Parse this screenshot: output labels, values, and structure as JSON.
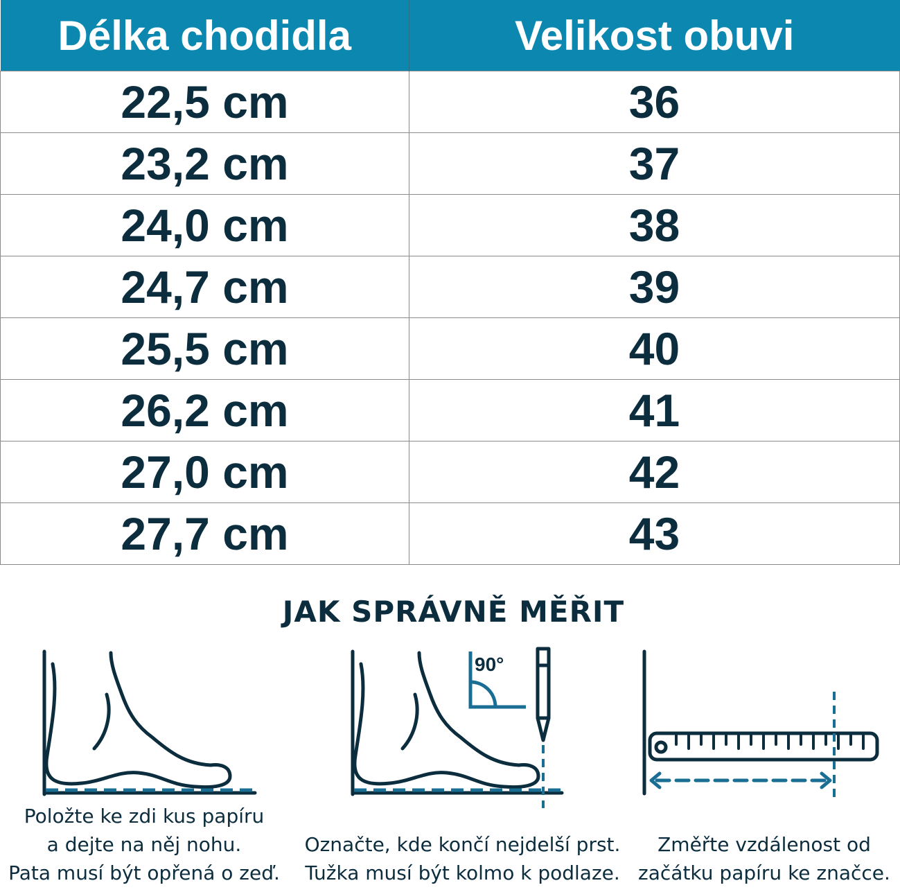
{
  "table": {
    "headers": {
      "length": "Délka chodidla",
      "size": "Velikost obuvi"
    },
    "rows": [
      {
        "length": "22,5 cm",
        "size": "36"
      },
      {
        "length": "23,2 cm",
        "size": "37"
      },
      {
        "length": "24,0 cm",
        "size": "38"
      },
      {
        "length": "24,7 cm",
        "size": "39"
      },
      {
        "length": "25,5 cm",
        "size": "40"
      },
      {
        "length": "26,2 cm",
        "size": "41"
      },
      {
        "length": "27,0 cm",
        "size": "42"
      },
      {
        "length": "27,7 cm",
        "size": "43"
      }
    ]
  },
  "howto": {
    "title": "JAK SPRÁVNĚ MĚŘIT",
    "steps": [
      {
        "icon": "foot-against-wall-icon",
        "lines": [
          "Položte ke zdi kus papíru",
          "a dejte na něj nohu.",
          "Pata musí být opřená o zeď."
        ]
      },
      {
        "icon": "foot-pencil-mark-icon",
        "angle_label": "90°",
        "lines": [
          "Označte, kde končí nejdelší prst.",
          "Tužka musí být kolmo k podlaze."
        ]
      },
      {
        "icon": "ruler-measure-icon",
        "lines": [
          "Změřte vzdálenost od",
          "začátku papíru ke značce."
        ]
      }
    ]
  },
  "colors": {
    "header_bg": "#0b87b0",
    "text_dark": "#0c2d3e",
    "accent": "#1a6e94",
    "grid": "#8a8a8a"
  }
}
